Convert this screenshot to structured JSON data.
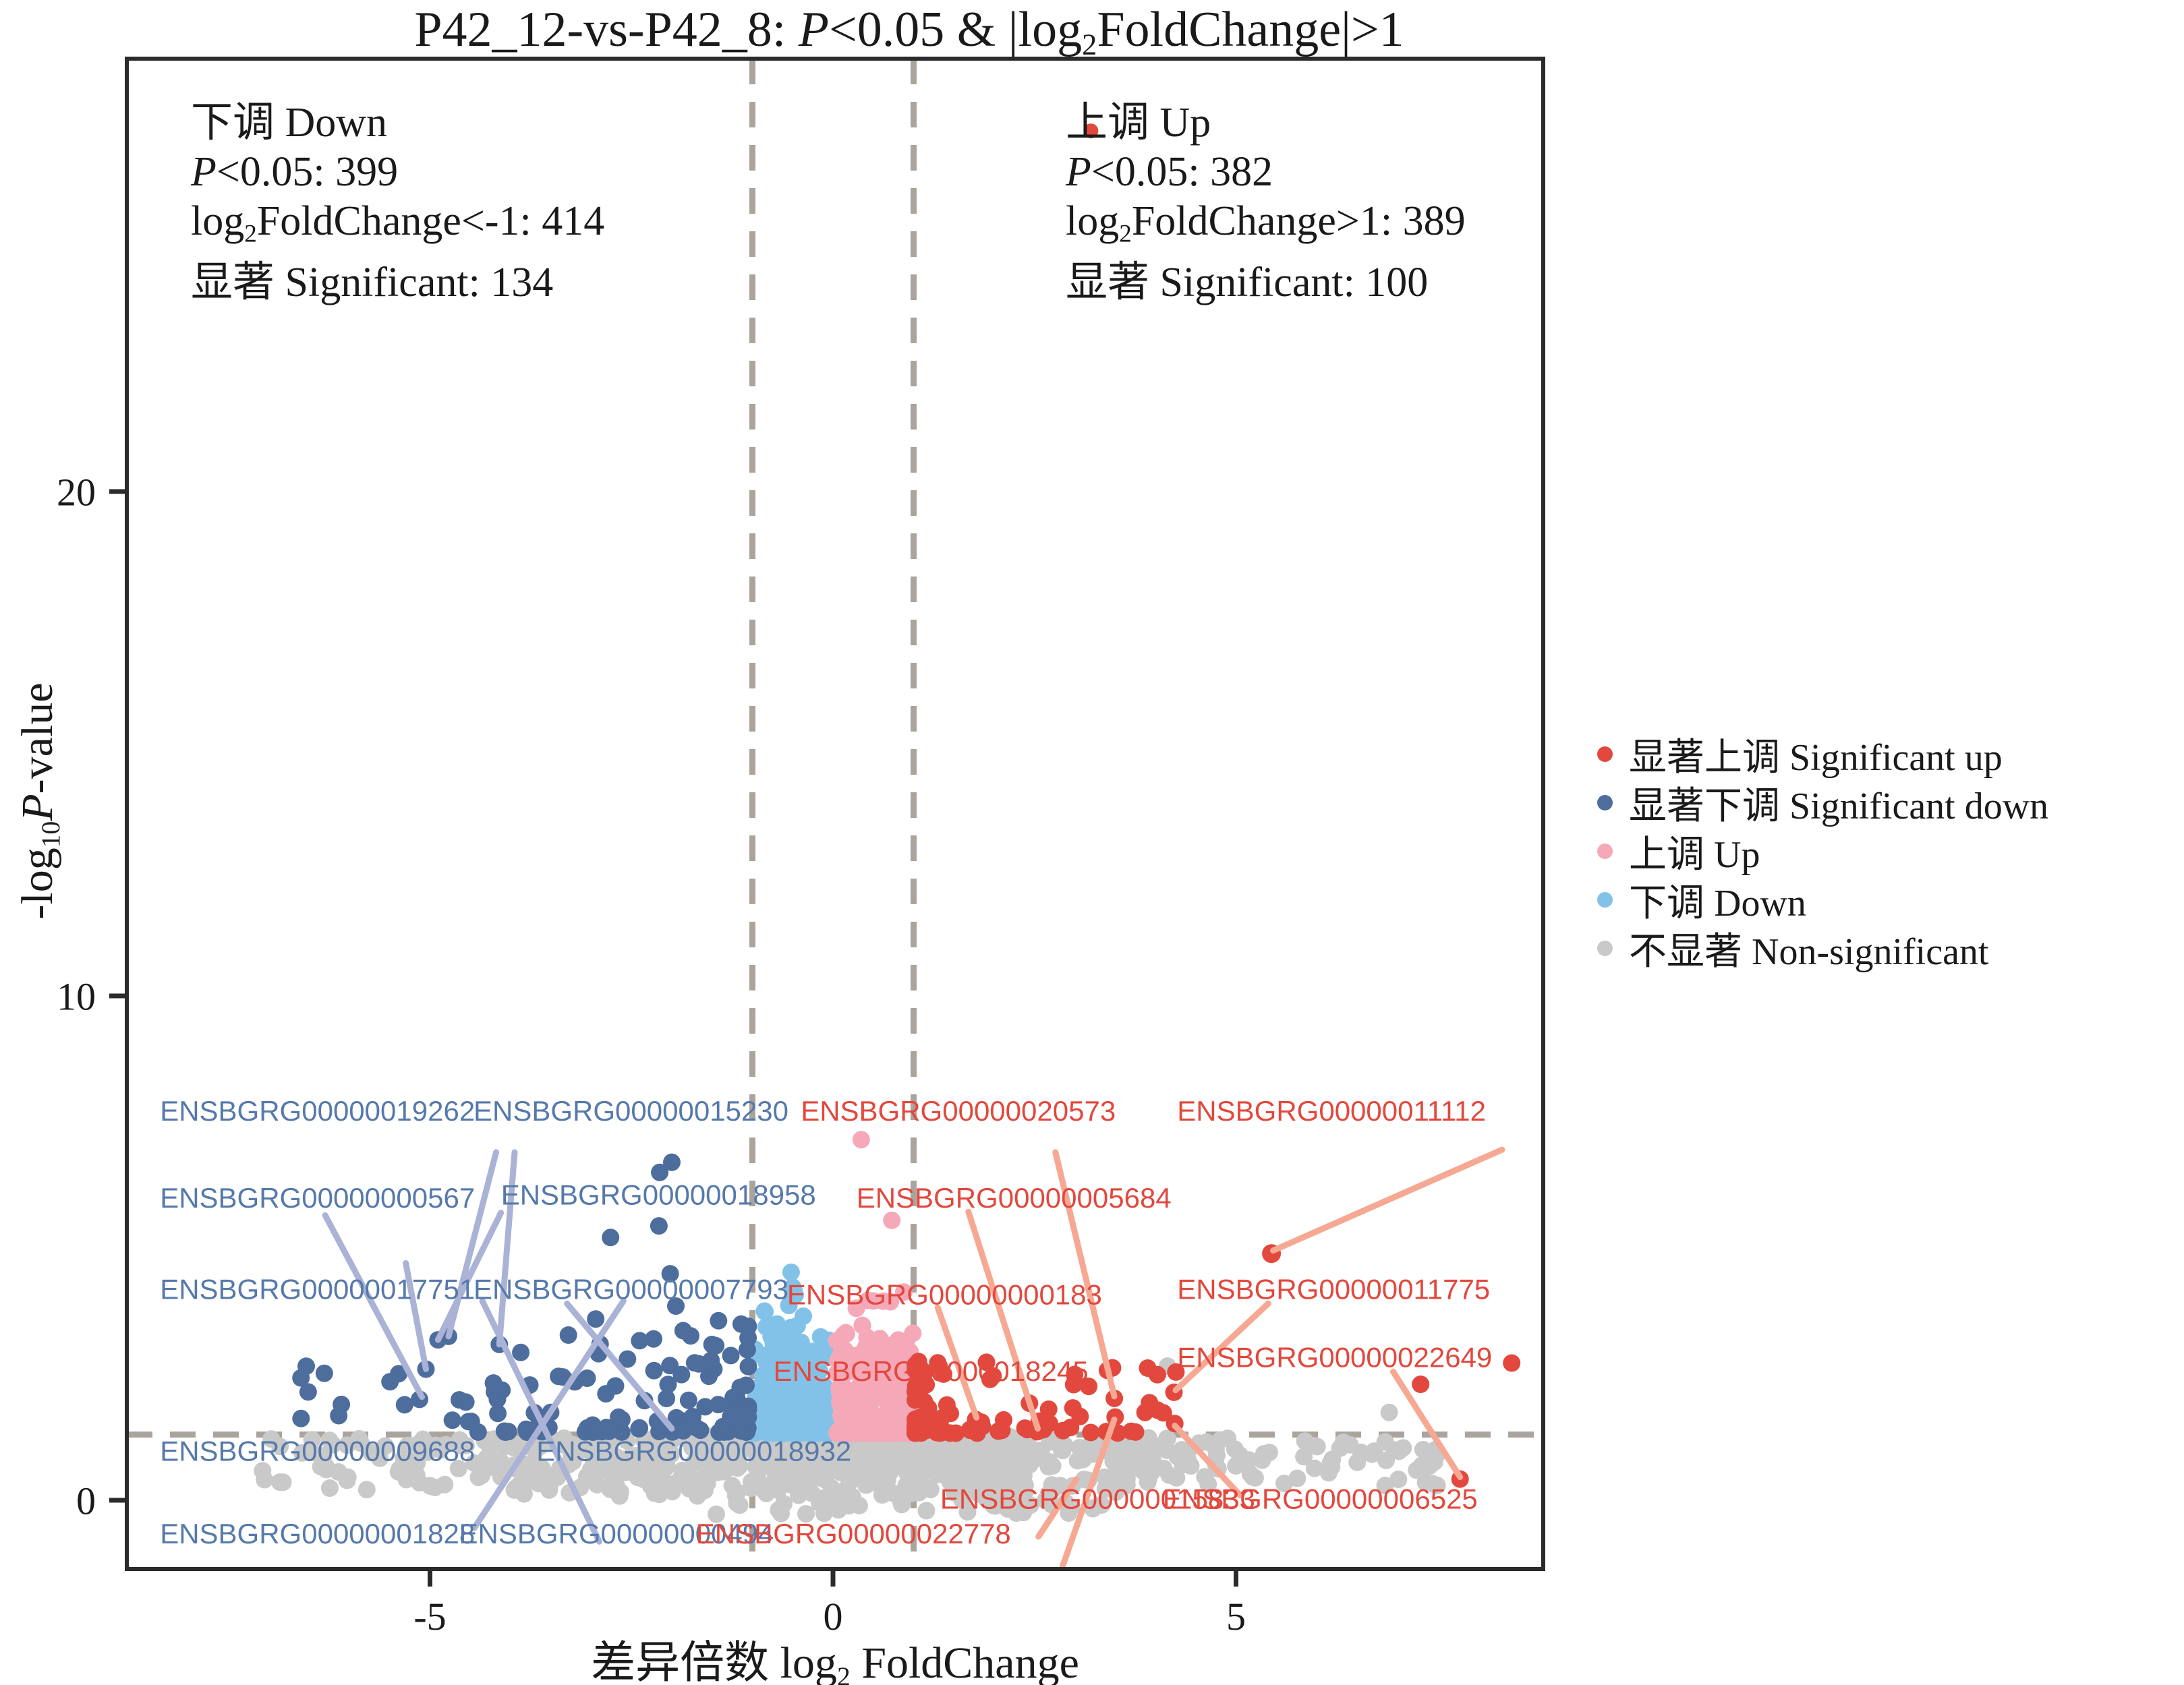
{
  "figure": {
    "title_segments": [
      {
        "t": "P42_12-vs-P42_8: "
      },
      {
        "t": "P",
        "i": true
      },
      {
        "t": "<0.05 & |log"
      },
      {
        "t": "2",
        "sub": true
      },
      {
        "t": "FoldChange|>1"
      }
    ]
  },
  "annotations": {
    "down": {
      "lines": [
        [
          {
            "t": "下调 Down"
          }
        ],
        [
          {
            "t": "P",
            "i": true
          },
          {
            "t": "<0.05: 399"
          }
        ],
        [
          {
            "t": "log"
          },
          {
            "t": "2",
            "sub": true
          },
          {
            "t": "FoldChange<-1: 414"
          }
        ],
        [
          {
            "t": "显著 Significant: 134"
          }
        ]
      ]
    },
    "up": {
      "lines": [
        [
          {
            "t": "上调 Up"
          }
        ],
        [
          {
            "t": "P",
            "i": true
          },
          {
            "t": "<0.05: 382"
          }
        ],
        [
          {
            "t": "log"
          },
          {
            "t": "2",
            "sub": true
          },
          {
            "t": "FoldChange>1: 389"
          }
        ],
        [
          {
            "t": "显著 Significant: 100"
          }
        ]
      ]
    }
  },
  "axes": {
    "x": {
      "label_segments": [
        {
          "t": "差异倍数 log"
        },
        {
          "t": "2",
          "sub": true
        },
        {
          "t": " FoldChange"
        }
      ],
      "ticks": [
        -5,
        0,
        5
      ],
      "range": [
        -8.8,
        8.8
      ]
    },
    "y": {
      "label_segments": [
        {
          "t": "-log"
        },
        {
          "t": "10",
          "sub": true
        },
        {
          "t": "P",
          "i": true
        },
        {
          "t": "-value"
        }
      ],
      "ticks": [
        0,
        10,
        20
      ],
      "range": [
        -1.36,
        28.6
      ]
    }
  },
  "legend": {
    "items": [
      {
        "label": "显著上调 Significant up",
        "color": "#e2483d"
      },
      {
        "label": "显著下调 Significant down",
        "color": "#4d6d9d"
      },
      {
        "label": "上调 Up",
        "color": "#f4a8b8"
      },
      {
        "label": "下调 Down",
        "color": "#82c2e8"
      },
      {
        "label": "不显著 Non-significant",
        "color": "#c9c9c9"
      }
    ]
  },
  "chart_data": {
    "type": "scatter",
    "subtype": "volcano",
    "title": "P42_12-vs-P42_8: P<0.05 & |log2FoldChange|>1",
    "xlabel": "差异倍数 log2 FoldChange",
    "ylabel": "-log10 P-value",
    "xlim": [
      -8.8,
      8.8
    ],
    "ylim": [
      -1.36,
      28.6
    ],
    "thresholds": {
      "p_value": 0.05,
      "nlp_hline": 1.301,
      "fc_vlines": [
        -1,
        1
      ]
    },
    "counts": {
      "down": {
        "p_lt_0_05": 399,
        "log2fc_lt_minus1": 414,
        "significant": 134
      },
      "up": {
        "p_lt_0_05": 382,
        "log2fc_gt_1": 389,
        "significant": 100
      }
    },
    "colors": {
      "red": "#e2483d",
      "darkblue": "#4d6d9d",
      "pink": "#f4a8b8",
      "lightblue": "#82c2e8",
      "gray": "#c9c9c9",
      "label_blue": "#5679ab",
      "label_red": "#e2483d",
      "dash_line": "#aaa49d",
      "leader_blue": "#aab3d6",
      "leader_salmon": "#f6a893",
      "axis_black": "#2b2b2b"
    },
    "labeled_genes": [
      {
        "gene": "ENSBGRG00000019262",
        "x": -8.35,
        "y": 7.72,
        "c": "blue"
      },
      {
        "gene": "ENSBGRG00000015230",
        "x": -4.46,
        "y": 7.72,
        "c": "blue"
      },
      {
        "gene": "ENSBGRG00000020573",
        "x": -0.4,
        "y": 7.72,
        "c": "red"
      },
      {
        "gene": "ENSBGRG00000011112",
        "x": 4.27,
        "y": 7.72,
        "c": "red"
      },
      {
        "gene": "ENSBGRG00000000567",
        "x": -8.35,
        "y": 6.0,
        "c": "blue"
      },
      {
        "gene": "ENSBGRG00000018958",
        "x": -4.12,
        "y": 6.06,
        "c": "blue"
      },
      {
        "gene": "ENSBGRG00000005684",
        "x": 0.29,
        "y": 6.0,
        "c": "red"
      },
      {
        "gene": "ENSBGRG00000017751",
        "x": -8.35,
        "y": 4.19,
        "c": "blue"
      },
      {
        "gene": "ENSBGRG00000007793",
        "x": -4.46,
        "y": 4.19,
        "c": "blue"
      },
      {
        "gene": "ENSBGRG00000000183",
        "x": -0.57,
        "y": 4.08,
        "c": "red"
      },
      {
        "gene": "ENSBGRG00000011775",
        "x": 4.27,
        "y": 4.19,
        "c": "red"
      },
      {
        "gene": "ENSBGRG00000018245",
        "x": -0.74,
        "y": 2.56,
        "c": "red"
      },
      {
        "gene": "ENSBGRG00000022649",
        "x": 4.27,
        "y": 2.84,
        "c": "red"
      },
      {
        "gene": "ENSBGRG00000009688",
        "x": -8.35,
        "y": 0.98,
        "c": "blue"
      },
      {
        "gene": "ENSBGRG00000018932",
        "x": -3.68,
        "y": 0.98,
        "c": "blue"
      },
      {
        "gene": "ENSBGRG00000015833",
        "x": 1.33,
        "y": 0.03,
        "c": "red"
      },
      {
        "gene": "ENSBGRG00000006525",
        "x": 4.09,
        "y": 0.03,
        "c": "red"
      },
      {
        "gene": "ENSBGRG00000001828",
        "x": -8.35,
        "y": -0.66,
        "c": "blue"
      },
      {
        "gene": "ENSBGRG00000000494",
        "x": -4.64,
        "y": -0.66,
        "c": "blue"
      },
      {
        "gene": "ENSBGRG00000022778",
        "x": -1.7,
        "y": -0.66,
        "c": "red"
      }
    ],
    "leader_lines": [
      {
        "x1": -4.18,
        "y1": 6.9,
        "x2": -4.77,
        "y2": 3.25,
        "c": "blue"
      },
      {
        "x1": -3.95,
        "y1": 6.9,
        "x2": -4.14,
        "y2": 3.09,
        "c": "blue"
      },
      {
        "x1": -6.3,
        "y1": 5.65,
        "x2": -5.1,
        "y2": 2.05,
        "c": "blue"
      },
      {
        "x1": -4.12,
        "y1": 5.7,
        "x2": -4.9,
        "y2": 3.18,
        "c": "blue"
      },
      {
        "x1": -5.3,
        "y1": 4.7,
        "x2": -5.05,
        "y2": 2.6,
        "c": "blue"
      },
      {
        "x1": -2.6,
        "y1": 3.95,
        "x2": -4.45,
        "y2": -0.55,
        "c": "blue"
      },
      {
        "x1": -4.35,
        "y1": 3.95,
        "x2": -2.9,
        "y2": -0.82,
        "c": "blue"
      },
      {
        "x1": -3.3,
        "y1": 3.9,
        "x2": -2.0,
        "y2": 1.42,
        "c": "blue"
      },
      {
        "x1": 2.76,
        "y1": 6.9,
        "x2": 3.49,
        "y2": 2.06,
        "c": "salmon"
      },
      {
        "x1": 8.3,
        "y1": 6.95,
        "x2": 5.46,
        "y2": 4.95,
        "c": "salmon"
      },
      {
        "x1": 1.68,
        "y1": 5.72,
        "x2": 2.54,
        "y2": 1.42,
        "c": "salmon"
      },
      {
        "x1": 1.3,
        "y1": 3.82,
        "x2": 1.78,
        "y2": 1.64,
        "c": "salmon"
      },
      {
        "x1": 5.4,
        "y1": 3.9,
        "x2": 4.25,
        "y2": 2.18,
        "c": "salmon"
      },
      {
        "x1": 6.95,
        "y1": 2.55,
        "x2": 7.78,
        "y2": 0.46,
        "c": "salmon"
      },
      {
        "x1": 3.49,
        "y1": 1.6,
        "x2": 2.85,
        "y2": -1.3,
        "c": "salmon"
      },
      {
        "x1": 4.24,
        "y1": 1.48,
        "x2": 5.05,
        "y2": 0.1,
        "c": "salmon"
      },
      {
        "x1": 2.55,
        "y1": -0.72,
        "x2": 3.02,
        "y2": 0.42,
        "c": "salmon"
      }
    ],
    "special_points": [
      {
        "x": 3.2,
        "y": 27.15,
        "class": "red",
        "r": 11
      },
      {
        "x": 5.44,
        "y": 4.89,
        "class": "red",
        "r": 14
      },
      {
        "x": 3.49,
        "y": 2.02,
        "class": "red",
        "r": 13
      },
      {
        "x": 4.23,
        "y": 2.14,
        "class": "red",
        "r": 13
      },
      {
        "x": 2.53,
        "y": 1.38,
        "class": "red",
        "r": 13
      },
      {
        "x": 1.77,
        "y": 1.6,
        "class": "red",
        "r": 13
      },
      {
        "x": 7.78,
        "y": 0.42,
        "class": "red",
        "r": 13
      },
      {
        "x": 7.29,
        "y": 2.3,
        "class": "red",
        "r": 13
      },
      {
        "x": 8.42,
        "y": 2.72,
        "class": "red",
        "r": 13
      },
      {
        "x": 3.5,
        "y": 1.65,
        "class": "red",
        "r": 13
      },
      {
        "x": 4.24,
        "y": 1.52,
        "class": "red",
        "r": 13
      },
      {
        "x": 0.35,
        "y": 7.15,
        "class": "pink",
        "r": 13
      },
      {
        "x": 0.73,
        "y": 5.55,
        "class": "pink",
        "r": 13
      },
      {
        "x": 0.5,
        "y": 3.95,
        "class": "pink",
        "r": 13
      },
      {
        "x": -2.0,
        "y": 6.7,
        "class": "darkblue",
        "r": 13
      },
      {
        "x": -2.15,
        "y": 6.5,
        "class": "darkblue",
        "r": 13
      },
      {
        "x": -2.76,
        "y": 5.21,
        "class": "darkblue",
        "r": 13
      },
      {
        "x": -2.16,
        "y": 5.44,
        "class": "darkblue",
        "r": 13
      },
      {
        "x": -2.02,
        "y": 4.49,
        "class": "darkblue",
        "r": 13
      },
      {
        "x": -1.95,
        "y": 3.85,
        "class": "darkblue",
        "r": 13
      },
      {
        "x": -4.77,
        "y": 3.25,
        "class": "darkblue",
        "r": 13
      },
      {
        "x": -4.9,
        "y": 3.18,
        "class": "darkblue",
        "r": 13
      },
      {
        "x": -4.14,
        "y": 3.09,
        "class": "darkblue",
        "r": 13
      },
      {
        "x": -5.05,
        "y": 2.6,
        "class": "darkblue",
        "r": 13
      },
      {
        "x": -5.13,
        "y": 2.0,
        "class": "darkblue",
        "r": 13
      },
      {
        "x": -6.1,
        "y": 1.9,
        "class": "darkblue",
        "r": 13
      },
      {
        "x": -6.6,
        "y": 1.62,
        "class": "darkblue",
        "r": 13
      },
      {
        "x": -4.2,
        "y": 2.15,
        "class": "darkblue",
        "r": 13
      },
      {
        "x": -0.52,
        "y": 4.52,
        "class": "lightblue",
        "r": 13
      },
      {
        "x": -0.85,
        "y": 3.75,
        "class": "lightblue",
        "r": 13
      },
      {
        "x": 4.15,
        "y": 2.66,
        "class": "gray",
        "r": 13
      },
      {
        "x": 6.9,
        "y": 1.74,
        "class": "gray",
        "r": 13
      }
    ],
    "clusters": [
      {
        "class": "darkblue",
        "count": 118,
        "x": [
          -1.05,
          -4.3,
          2.2
        ],
        "y": [
          1.35,
          3.6,
          2.6
        ]
      },
      {
        "class": "darkblue",
        "count": 14,
        "x": [
          -4.4,
          -6.8,
          1.6
        ],
        "y": [
          1.35,
          2.9,
          1.8
        ]
      },
      {
        "class": "lightblue",
        "count": 240,
        "x": [
          -0.04,
          -0.99,
          1.0
        ],
        "y": [
          1.33,
          3.5,
          2.6
        ]
      },
      {
        "class": "lightblue",
        "count": 6,
        "x": [
          -0.2,
          -0.95,
          1.0
        ],
        "y": [
          3.4,
          4.6,
          1.4
        ]
      },
      {
        "class": "pink",
        "count": 260,
        "x": [
          0.04,
          0.99,
          1.0
        ],
        "y": [
          1.33,
          3.4,
          2.6
        ]
      },
      {
        "class": "pink",
        "count": 6,
        "x": [
          0.1,
          0.9,
          1.0
        ],
        "y": [
          3.3,
          4.2,
          1.5
        ]
      },
      {
        "class": "red",
        "count": 78,
        "x": [
          1.02,
          4.6,
          2.4
        ],
        "y": [
          1.33,
          2.8,
          2.2
        ]
      },
      {
        "class": "red",
        "count": 8,
        "x": [
          2.2,
          4.5,
          1.2
        ],
        "y": [
          1.4,
          2.6,
          1.5
        ]
      },
      {
        "class": "gray",
        "count": 380,
        "x": [
          -3.9,
          3.9,
          1.0
        ],
        "y": [
          0.08,
          1.28,
          0.75
        ]
      },
      {
        "class": "gray",
        "count": 220,
        "x": [
          -1.8,
          2.3,
          1.0
        ],
        "y": [
          0.05,
          1.28,
          0.7
        ]
      },
      {
        "class": "gray",
        "count": 85,
        "x": [
          -3.9,
          -7.3,
          1.7
        ],
        "y": [
          0.2,
          1.25,
          0.8
        ]
      },
      {
        "class": "gray",
        "count": 85,
        "x": [
          3.9,
          7.6,
          1.7
        ],
        "y": [
          0.2,
          1.25,
          0.8
        ]
      },
      {
        "class": "gray",
        "count": 45,
        "x": [
          -1.6,
          3.4,
          1.0
        ],
        "y": [
          -0.28,
          0.1,
          1.0
        ]
      }
    ]
  }
}
